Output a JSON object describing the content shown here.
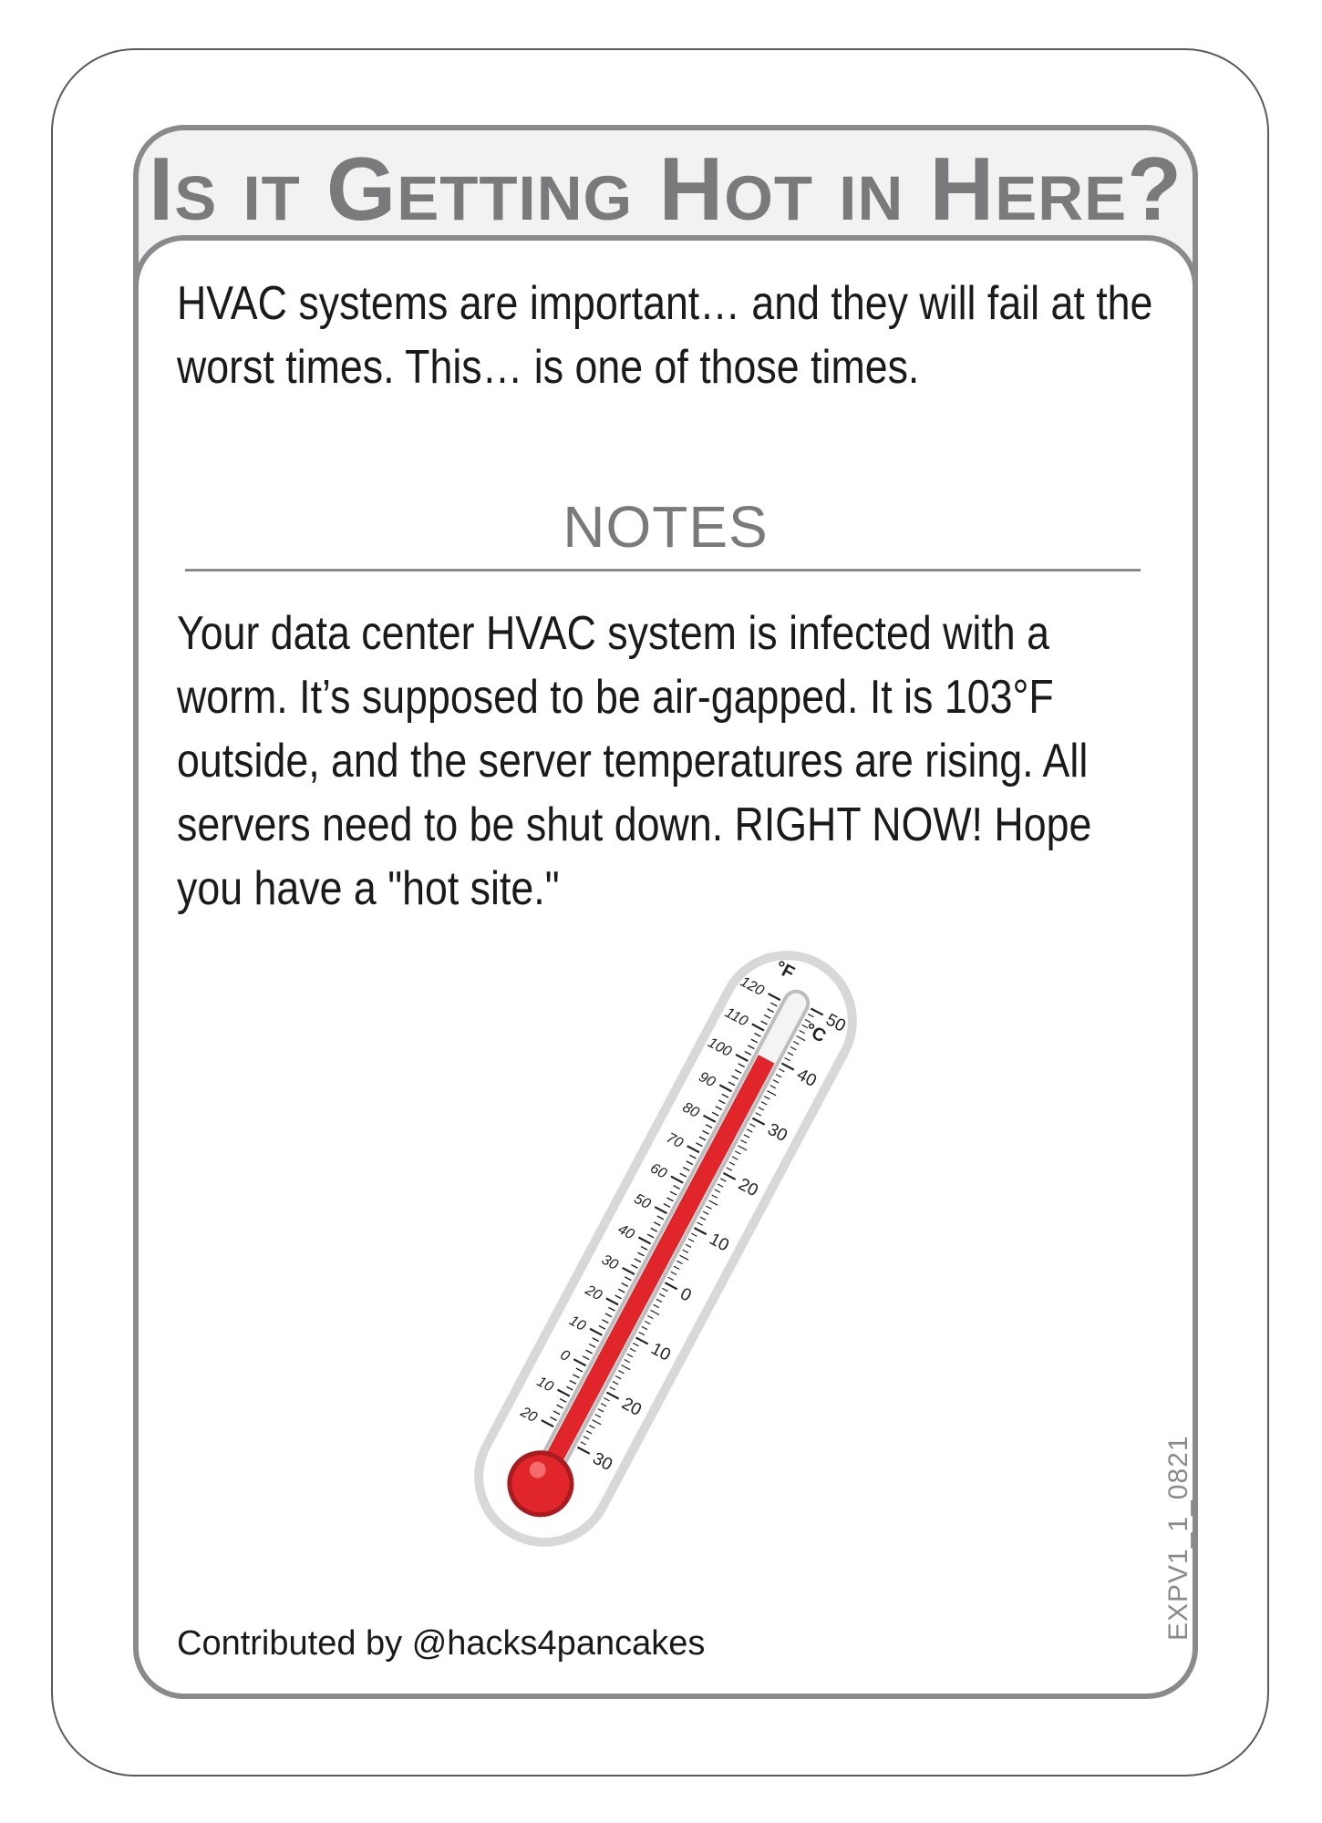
{
  "card": {
    "title": "Is it Getting Hot in Here?",
    "intro": "HVAC systems are important… and they will fail at the worst times. This… is one of those times.",
    "notes_heading": "NOTES",
    "notes_body": "Your data center HVAC system is infected with a worm. It’s supposed to be air-gapped. It is 103°F outside, and the server temperatures are rising. All servers need to be shut down. RIGHT NOW! Hope you have a \"hot site.\"",
    "contributor": "Contributed by @hacks4pancakes",
    "code": "EXPV1_1_0821"
  },
  "thermometer": {
    "icon": "thermometer-icon",
    "fahrenheit_unit": "°F",
    "celsius_unit": "°C",
    "fahrenheit_ticks": [
      "120",
      "110",
      "100",
      "90",
      "80",
      "70",
      "60",
      "50",
      "40",
      "30",
      "20",
      "10",
      "0",
      "10",
      "20"
    ],
    "celsius_ticks": [
      "50",
      "40",
      "30",
      "20",
      "10",
      "0",
      "10",
      "20",
      "30"
    ],
    "level_fahrenheit": 103,
    "fluid_color": "#e0262b",
    "frame_color": "#d8d8d8"
  },
  "colors": {
    "border": "#8a8a8c",
    "title_text": "#7a7a7c",
    "title_background": "#f2f2f2",
    "body_text": "#1a1a1a"
  }
}
